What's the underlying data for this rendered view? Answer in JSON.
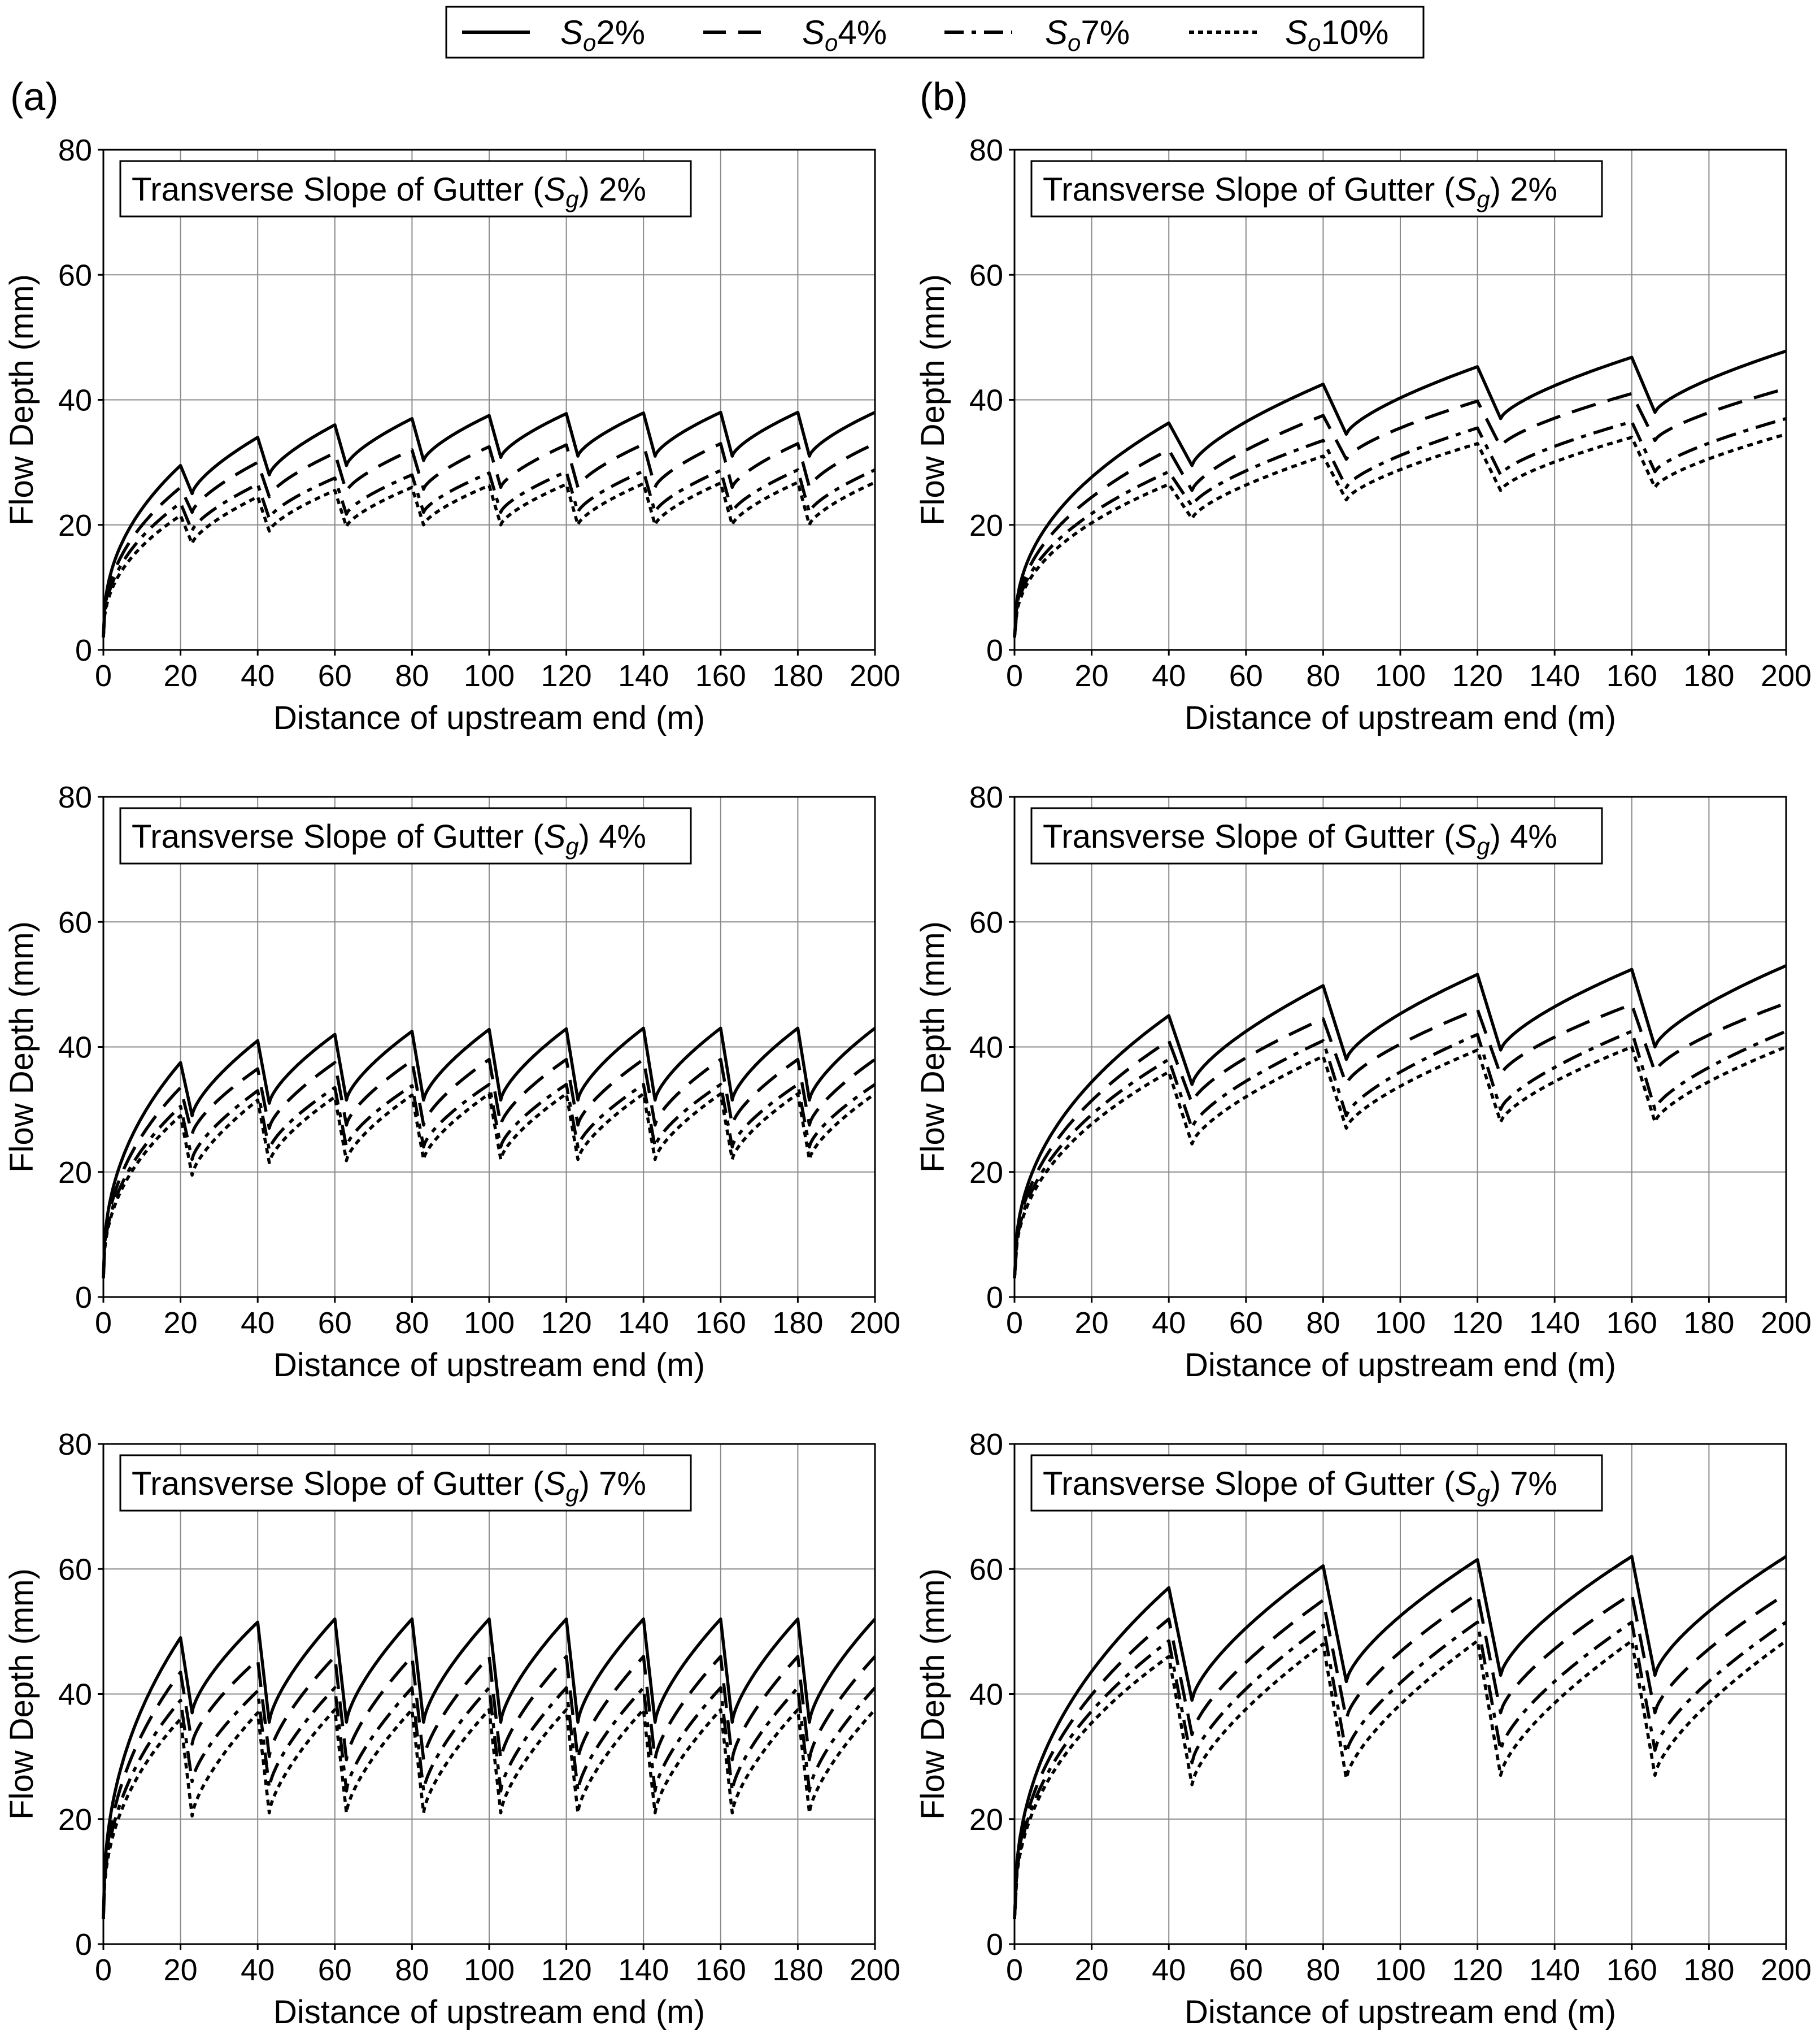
{
  "legend": {
    "entries": [
      {
        "symbol": "S",
        "subscript": "o",
        "value": "2%"
      },
      {
        "symbol": "S",
        "subscript": "o",
        "value": "4%"
      },
      {
        "symbol": "S",
        "subscript": "o",
        "value": "7%"
      },
      {
        "symbol": "S",
        "subscript": "o",
        "value": "10%"
      }
    ]
  },
  "columns": [
    {
      "label": "(a)",
      "inlet_spacing_m": 20
    },
    {
      "label": "(b)",
      "inlet_spacing_m": 40
    }
  ],
  "chart_data": [
    {
      "type": "line",
      "panel": "(a)",
      "row": 1,
      "inset_prefix": "Transverse Slope of Gutter (",
      "inset_symbol": "S",
      "inset_subscript": "g",
      "inset_suffix": ") 2%",
      "xlabel": "Distance of upstream end (m)",
      "ylabel": "Flow Depth (mm)",
      "xlim": [
        0,
        200
      ],
      "ylim": [
        0,
        80
      ],
      "xticks": [
        "0",
        "20",
        "40",
        "60",
        "80",
        "100",
        "120",
        "140",
        "160",
        "180",
        "200"
      ],
      "yticks": [
        "0",
        "20",
        "40",
        "60",
        "80"
      ],
      "grid": true,
      "inlet_spacing_m": 20,
      "series": [
        {
          "name": "So 2%",
          "start": 2,
          "peaks": [
            29.5,
            34,
            36,
            37,
            37.5,
            37.8,
            37.9,
            38,
            38,
            38
          ],
          "troughs": [
            25,
            28,
            29.5,
            30.3,
            30.8,
            31,
            31,
            31,
            31,
            31
          ]
        },
        {
          "name": "So 4%",
          "start": 2,
          "peaks": [
            26,
            30,
            31.5,
            32,
            32.5,
            32.8,
            32.9,
            33,
            33,
            33
          ],
          "troughs": [
            22,
            24.5,
            25.3,
            25.7,
            26,
            26,
            26,
            26,
            26,
            26
          ]
        },
        {
          "name": "So 7%",
          "start": 2,
          "peaks": [
            23.5,
            26.5,
            27.5,
            28,
            28.3,
            28.5,
            28.6,
            28.7,
            28.8,
            28.8
          ],
          "troughs": [
            19,
            21,
            21.7,
            22,
            22,
            22,
            22,
            22,
            22,
            22
          ]
        },
        {
          "name": "So 10%",
          "start": 2,
          "peaks": [
            21.5,
            24.5,
            25.5,
            26,
            26.3,
            26.5,
            26.6,
            26.7,
            26.8,
            26.8
          ],
          "troughs": [
            17,
            19,
            19.7,
            20,
            20,
            20,
            20,
            20,
            20,
            20
          ]
        }
      ]
    },
    {
      "type": "line",
      "panel": "(b)",
      "row": 1,
      "inset_prefix": "Transverse Slope of Gutter (",
      "inset_symbol": "S",
      "inset_subscript": "g",
      "inset_suffix": ") 2%",
      "xlabel": "Distance of upstream end (m)",
      "ylabel": "Flow Depth (mm)",
      "xlim": [
        0,
        200
      ],
      "ylim": [
        0,
        80
      ],
      "xticks": [
        "0",
        "20",
        "40",
        "60",
        "80",
        "100",
        "120",
        "140",
        "160",
        "180",
        "200"
      ],
      "yticks": [
        "0",
        "20",
        "40",
        "60",
        "80"
      ],
      "grid": true,
      "inlet_spacing_m": 40,
      "series": [
        {
          "name": "So 2%",
          "start": 2,
          "peaks": [
            36.3,
            42.5,
            45.3,
            46.8,
            47.8
          ],
          "troughs": [
            29.5,
            34.5,
            37,
            38
          ]
        },
        {
          "name": "So 4%",
          "start": 2,
          "peaks": [
            32,
            37.5,
            39.8,
            41,
            41.8
          ],
          "troughs": [
            25.5,
            30.5,
            32.5,
            33.5
          ]
        },
        {
          "name": "So 7%",
          "start": 2,
          "peaks": [
            28.5,
            33.5,
            35.5,
            36.5,
            37
          ],
          "troughs": [
            23,
            26,
            28,
            28.5
          ]
        },
        {
          "name": "So 10%",
          "start": 2,
          "peaks": [
            26.5,
            31,
            33,
            34,
            34.5
          ],
          "troughs": [
            21,
            24,
            25.5,
            26
          ]
        }
      ]
    },
    {
      "type": "line",
      "panel": "(a)",
      "row": 2,
      "inset_prefix": "Transverse Slope of Gutter (",
      "inset_symbol": "S",
      "inset_subscript": "g",
      "inset_suffix": ") 4%",
      "xlabel": "Distance of upstream end (m)",
      "ylabel": "Flow Depth (mm)",
      "xlim": [
        0,
        200
      ],
      "ylim": [
        0,
        80
      ],
      "xticks": [
        "0",
        "20",
        "40",
        "60",
        "80",
        "100",
        "120",
        "140",
        "160",
        "180",
        "200"
      ],
      "yticks": [
        "0",
        "20",
        "40",
        "60",
        "80"
      ],
      "grid": true,
      "inlet_spacing_m": 20,
      "series": [
        {
          "name": "So 2%",
          "start": 3,
          "peaks": [
            37.5,
            41,
            42,
            42.5,
            42.8,
            42.9,
            43,
            43,
            43,
            43
          ],
          "troughs": [
            29,
            31,
            31.5,
            31.5,
            31.5,
            31.5,
            31.5,
            31.5,
            31.5,
            31.5
          ]
        },
        {
          "name": "So 4%",
          "start": 3,
          "peaks": [
            33.5,
            36.5,
            37.5,
            37.8,
            38,
            38,
            38,
            38,
            38,
            38
          ],
          "troughs": [
            26,
            27,
            27.5,
            27.5,
            27.5,
            27.5,
            27.5,
            27.5,
            27.5,
            27.5
          ]
        },
        {
          "name": "So 7%",
          "start": 3,
          "peaks": [
            30.5,
            33,
            33.5,
            33.8,
            34,
            34,
            34,
            34,
            34,
            34
          ],
          "troughs": [
            22,
            23.5,
            24,
            24,
            24,
            24,
            24,
            24,
            24,
            24
          ]
        },
        {
          "name": "So 10%",
          "start": 3,
          "peaks": [
            29,
            31.5,
            32,
            32.3,
            32.5,
            32.5,
            32.5,
            32.5,
            32.5,
            32.5
          ],
          "troughs": [
            19.5,
            21.5,
            21.8,
            22,
            22,
            22,
            22,
            22,
            22,
            22
          ]
        }
      ]
    },
    {
      "type": "line",
      "panel": "(b)",
      "row": 2,
      "inset_prefix": "Transverse Slope of Gutter (",
      "inset_symbol": "S",
      "inset_subscript": "g",
      "inset_suffix": ") 4%",
      "xlabel": "Distance of upstream end (m)",
      "ylabel": "Flow Depth (mm)",
      "xlim": [
        0,
        200
      ],
      "ylim": [
        0,
        80
      ],
      "xticks": [
        "0",
        "20",
        "40",
        "60",
        "80",
        "100",
        "120",
        "140",
        "160",
        "180",
        "200"
      ],
      "yticks": [
        "0",
        "20",
        "40",
        "60",
        "80"
      ],
      "grid": true,
      "inlet_spacing_m": 40,
      "series": [
        {
          "name": "So 2%",
          "start": 3,
          "peaks": [
            45,
            49.8,
            51.6,
            52.4,
            53
          ],
          "troughs": [
            34,
            38,
            39.5,
            40
          ]
        },
        {
          "name": "So 4%",
          "start": 3,
          "peaks": [
            41,
            44.5,
            46,
            46.8,
            47
          ],
          "troughs": [
            31,
            34,
            35.5,
            36
          ]
        },
        {
          "name": "So 7%",
          "start": 3,
          "peaks": [
            38,
            41,
            42,
            42.5,
            42.5
          ],
          "troughs": [
            27,
            29,
            30,
            30
          ]
        },
        {
          "name": "So 10%",
          "start": 3,
          "peaks": [
            36,
            38.5,
            39.5,
            40,
            40
          ],
          "troughs": [
            24.5,
            27,
            28,
            28
          ]
        }
      ]
    },
    {
      "type": "line",
      "panel": "(a)",
      "row": 3,
      "inset_prefix": "Transverse Slope of Gutter (",
      "inset_symbol": "S",
      "inset_subscript": "g",
      "inset_suffix": ") 7%",
      "xlabel": "Distance of upstream end (m)",
      "ylabel": "Flow Depth (mm)",
      "xlim": [
        0,
        200
      ],
      "ylim": [
        0,
        80
      ],
      "xticks": [
        "0",
        "20",
        "40",
        "60",
        "80",
        "100",
        "120",
        "140",
        "160",
        "180",
        "200"
      ],
      "yticks": [
        "0",
        "20",
        "40",
        "60",
        "80"
      ],
      "grid": true,
      "inlet_spacing_m": 20,
      "series": [
        {
          "name": "So 2%",
          "start": 4,
          "peaks": [
            49,
            51.5,
            52,
            52,
            52,
            52,
            52,
            52,
            52,
            52
          ],
          "troughs": [
            37,
            35.5,
            35.5,
            35.5,
            35.5,
            35.5,
            35.5,
            35.5,
            35.5,
            35.5
          ]
        },
        {
          "name": "So 4%",
          "start": 4,
          "peaks": [
            43.5,
            45.5,
            46,
            46,
            46,
            46,
            46,
            46,
            46,
            46
          ],
          "troughs": [
            32,
            30,
            29.5,
            29.5,
            29.5,
            29.5,
            29.5,
            29.5,
            29.5,
            29.5
          ]
        },
        {
          "name": "So 7%",
          "start": 4,
          "peaks": [
            39,
            40.5,
            41,
            41,
            41,
            41,
            41,
            41,
            41,
            41
          ],
          "troughs": [
            26,
            25,
            24.5,
            24.5,
            24.5,
            24.5,
            24.5,
            24.5,
            24.5,
            24.5
          ]
        },
        {
          "name": "So 10%",
          "start": 4,
          "peaks": [
            36,
            37,
            37.5,
            37.5,
            37.5,
            37.5,
            37.5,
            37.5,
            37.5,
            37.5
          ],
          "troughs": [
            20.5,
            21,
            21,
            21,
            21,
            21,
            21,
            21,
            21,
            21
          ]
        }
      ]
    },
    {
      "type": "line",
      "panel": "(b)",
      "row": 3,
      "inset_prefix": "Transverse Slope of Gutter (",
      "inset_symbol": "S",
      "inset_subscript": "g",
      "inset_suffix": ") 7%",
      "xlabel": "Distance of upstream end (m)",
      "ylabel": "Flow Depth (mm)",
      "xlim": [
        0,
        200
      ],
      "ylim": [
        0,
        80
      ],
      "xticks": [
        "0",
        "20",
        "40",
        "60",
        "80",
        "100",
        "120",
        "140",
        "160",
        "180",
        "200"
      ],
      "yticks": [
        "0",
        "20",
        "40",
        "60",
        "80"
      ],
      "grid": true,
      "inlet_spacing_m": 40,
      "series": [
        {
          "name": "So 2%",
          "start": 4,
          "peaks": [
            57,
            60.5,
            61.5,
            62,
            62
          ],
          "troughs": [
            39,
            42,
            43,
            43
          ]
        },
        {
          "name": "So 4%",
          "start": 4,
          "peaks": [
            52,
            55,
            56,
            56,
            56
          ],
          "troughs": [
            33.5,
            36,
            37,
            37
          ]
        },
        {
          "name": "So 7%",
          "start": 4,
          "peaks": [
            48.5,
            51,
            51.5,
            51.5,
            51.5
          ],
          "troughs": [
            29,
            30.5,
            31,
            31
          ]
        },
        {
          "name": "So 10%",
          "start": 4,
          "peaks": [
            46,
            48,
            48.5,
            48.5,
            48.5
          ],
          "troughs": [
            25.5,
            26.5,
            27,
            27
          ]
        }
      ]
    }
  ]
}
